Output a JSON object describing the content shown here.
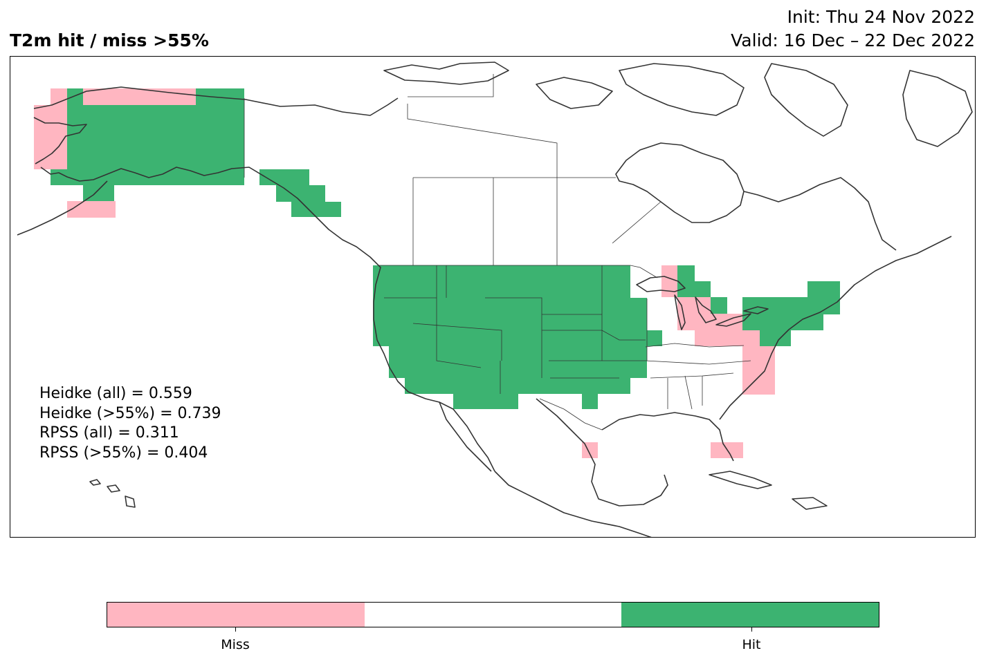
{
  "title": "T2m hit / miss  >55%",
  "init": "Init: Thu 24 Nov 2022",
  "valid": "Valid: 16 Dec – 22 Dec 2022",
  "stats": [
    "Heidke (all) = 0.559",
    "Heidke (>55%) = 0.739",
    "RPSS (all) = 0.311",
    "RPSS (>55%) = 0.404"
  ],
  "legend": {
    "categories": [
      "Miss",
      "",
      "Hit"
    ],
    "labels": {
      "miss": "Miss",
      "hit": "Hit"
    },
    "colors": {
      "miss": "#ffb6c1",
      "neutral": "#ffffff",
      "hit": "#3cb371"
    }
  },
  "map": {
    "region": "North America",
    "coast_color": "#333333",
    "border_color": "#333333"
  }
}
